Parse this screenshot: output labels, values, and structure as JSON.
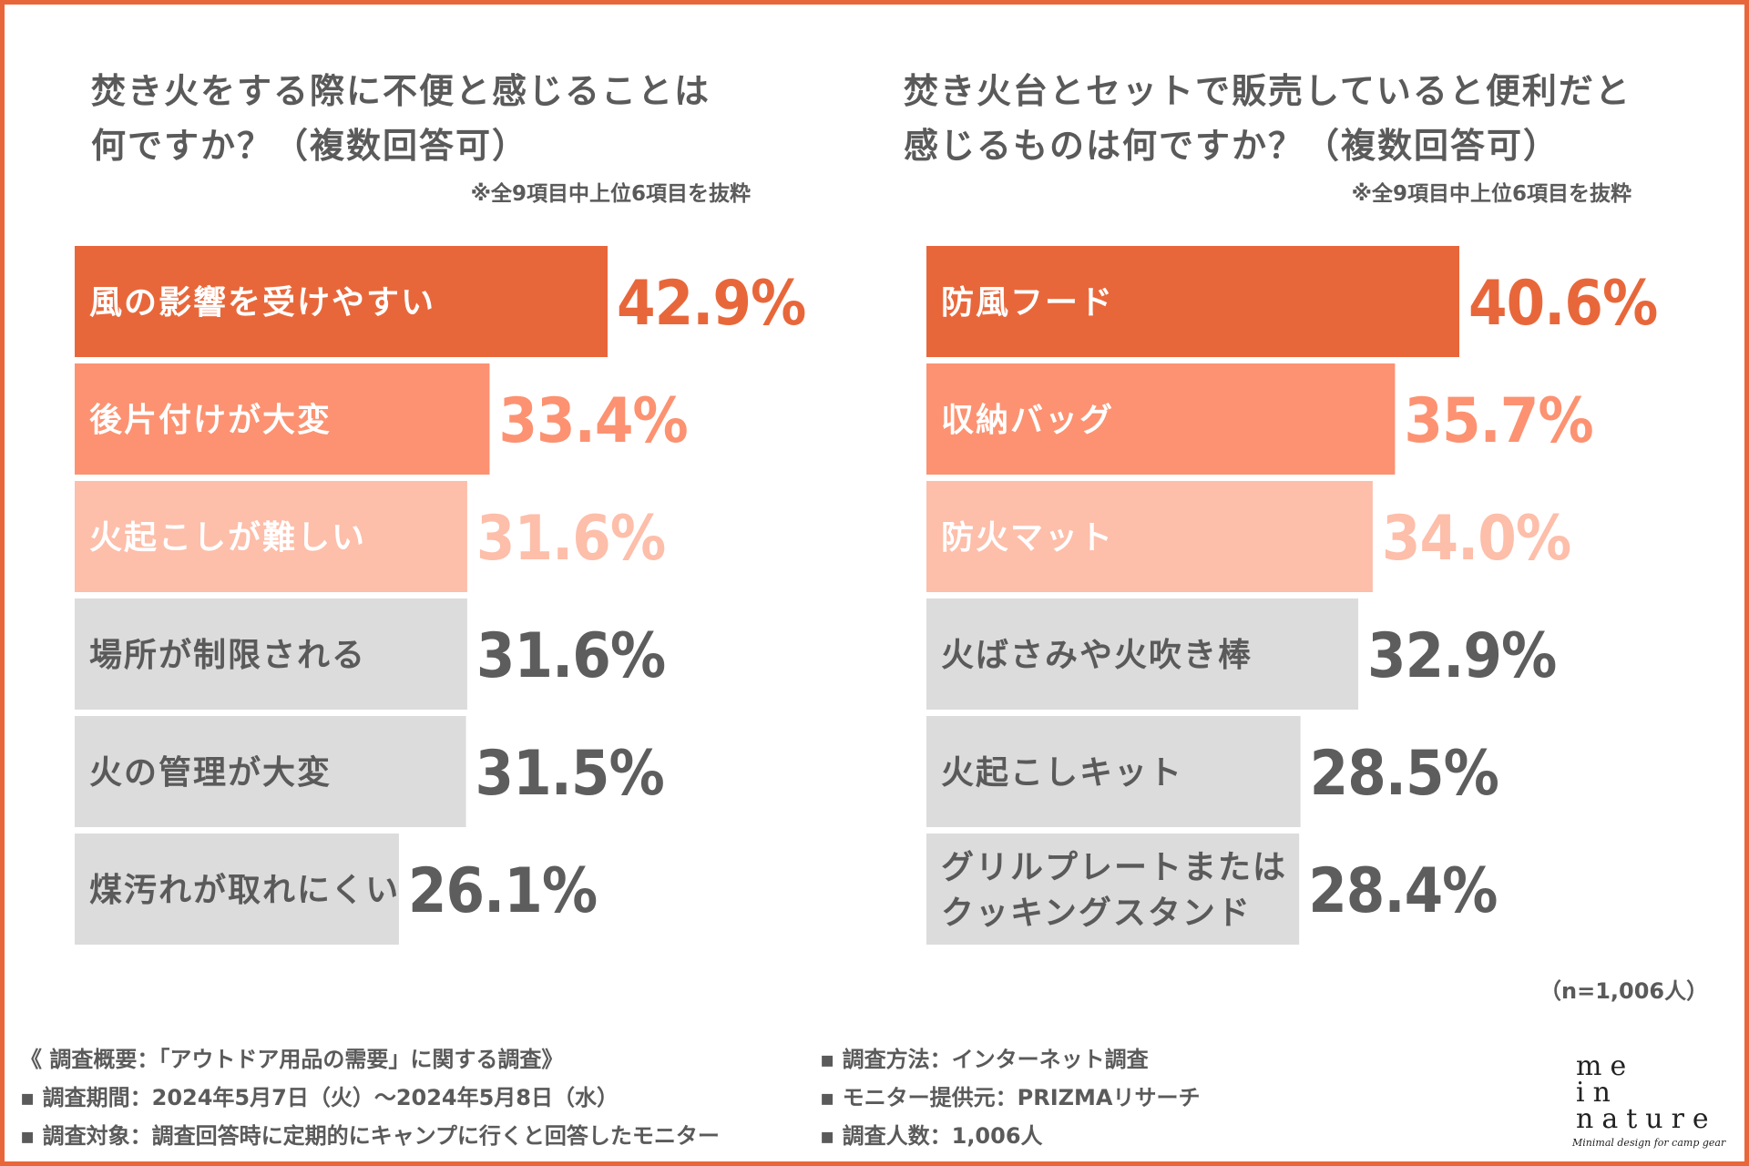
{
  "colors": {
    "accent": "#e8673a",
    "mid": "#fc9271",
    "light": "#fdbeaa",
    "gray": "#dcdcdc",
    "text_dark": "#5a5a5a",
    "value_dark": "#5d5d5d",
    "white": "#ffffff"
  },
  "left_panel": {
    "title_lines": [
      "焚き火をする際に不便と感じることは",
      "何ですか？（複数回答可）"
    ],
    "note": "※全9項目中上位6項目を抜粋"
  },
  "right_panel": {
    "title_lines": [
      "焚き火台とセットで販売していると便利だと",
      "感じるものは何ですか？（複数回答可）"
    ],
    "note": "※全9項目中上位6項目を抜粋"
  },
  "chart_data": [
    {
      "type": "bar",
      "orientation": "horizontal",
      "title": "焚き火をする際に不便と感じることは何ですか？（複数回答可）",
      "unit": "%",
      "categories": [
        "風の影響を受けやすい",
        "後片付けが大変",
        "火起こしが難しい",
        "場所が制限される",
        "火の管理が大変",
        "煤汚れが取れにくい"
      ],
      "values": [
        42.9,
        33.4,
        31.6,
        31.6,
        31.5,
        26.1
      ],
      "value_labels": [
        "42.9%",
        "33.4%",
        "31.6%",
        "31.6%",
        "31.5%",
        "26.1%"
      ]
    },
    {
      "type": "bar",
      "orientation": "horizontal",
      "title": "焚き火台とセットで販売していると便利だと感じるものは何ですか？（複数回答可）",
      "unit": "%",
      "categories": [
        "防風フード",
        "収納バッグ",
        "防火マット",
        "火ばさみや火吹き棒",
        "火起こしキット",
        "グリルプレートまたは\nクッキングスタンド"
      ],
      "values": [
        40.6,
        35.7,
        34.0,
        32.9,
        28.5,
        28.4
      ],
      "value_labels": [
        "40.6%",
        "35.7%",
        "34.0%",
        "32.9%",
        "28.5%",
        "28.4%"
      ]
    }
  ],
  "sample_size": "（n=1,006人）",
  "footer": {
    "left": [
      "《 調査概要：「アウトドア用品の需要」に関する調査》",
      "▪ 調査期間：2024年5月7日（火）〜2024年5月8日（水）",
      "▪ 調査対象：調査回答時に定期的にキャンプに行くと回答したモニター"
    ],
    "right": [
      "▪ 調査方法：インターネット調査",
      "▪ モニター提供元：PRIZMAリサーチ",
      "▪ 調査人数：1,006人"
    ]
  },
  "logo": {
    "lines": [
      "me",
      "in",
      "nature"
    ],
    "tagline": "Minimal design for camp gear"
  }
}
